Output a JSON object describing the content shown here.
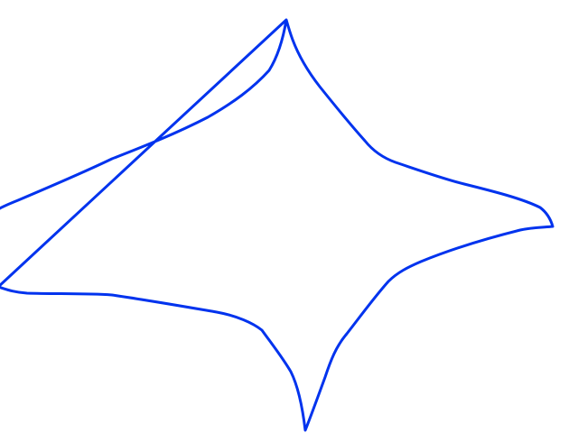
{
  "drawing": {
    "stroke_color": "#0033ee",
    "background_color": "#ffffff",
    "shape": "four-pointed-star-outline"
  }
}
